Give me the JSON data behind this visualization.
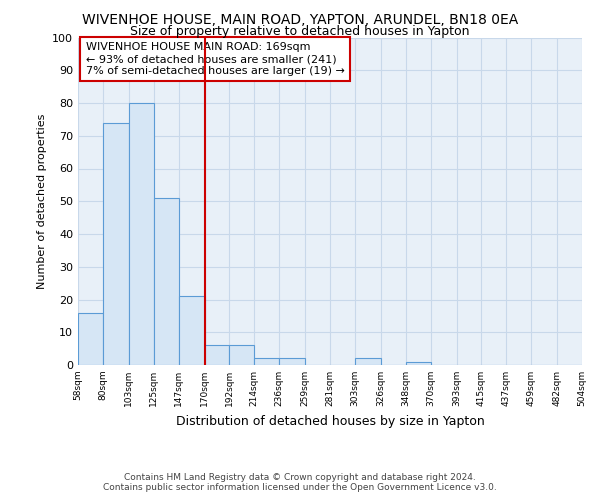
{
  "title": "WIVENHOE HOUSE, MAIN ROAD, YAPTON, ARUNDEL, BN18 0EA",
  "subtitle": "Size of property relative to detached houses in Yapton",
  "xlabel": "Distribution of detached houses by size in Yapton",
  "ylabel": "Number of detached properties",
  "bin_edges": [
    58,
    80,
    103,
    125,
    147,
    170,
    192,
    214,
    236,
    259,
    281,
    303,
    326,
    348,
    370,
    393,
    415,
    437,
    459,
    482,
    504
  ],
  "bar_heights": [
    16,
    74,
    80,
    51,
    21,
    6,
    6,
    2,
    2,
    0,
    0,
    2,
    0,
    1,
    0,
    0,
    0,
    0,
    0,
    0
  ],
  "bar_color": "#d6e6f5",
  "bar_edge_color": "#5b9bd5",
  "vline_x": 170,
  "vline_color": "#cc0000",
  "annotation_text": "WIVENHOE HOUSE MAIN ROAD: 169sqm\n← 93% of detached houses are smaller (241)\n7% of semi-detached houses are larger (19) →",
  "annotation_box_color": "#ffffff",
  "annotation_border_color": "#cc0000",
  "ylim": [
    0,
    100
  ],
  "yticks": [
    0,
    10,
    20,
    30,
    40,
    50,
    60,
    70,
    80,
    90,
    100
  ],
  "footer_line1": "Contains HM Land Registry data © Crown copyright and database right 2024.",
  "footer_line2": "Contains public sector information licensed under the Open Government Licence v3.0.",
  "bg_color": "#ffffff",
  "grid_color": "#c8d8ea",
  "title_fontsize": 10,
  "subtitle_fontsize": 9
}
